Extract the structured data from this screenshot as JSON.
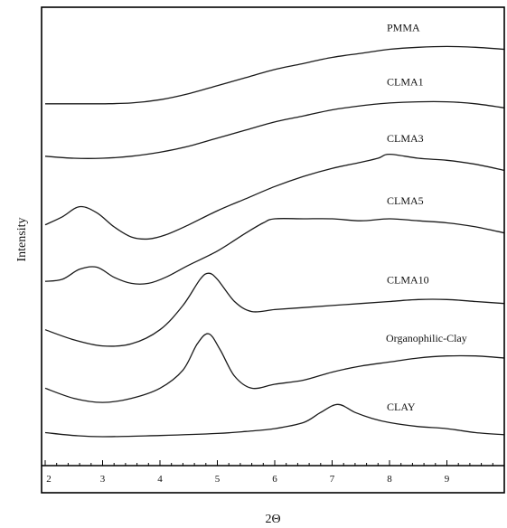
{
  "chart_data": {
    "type": "line",
    "xlabel": "2Θ",
    "ylabel": "Intensity",
    "xlim": [
      2,
      10
    ],
    "xticks": [
      "2",
      "3",
      "4",
      "5",
      "6",
      "7",
      "8",
      "9"
    ],
    "grid": false,
    "legend": "inline labels at right",
    "series": [
      {
        "name": "PMMA",
        "x": [
          2,
          2.5,
          3,
          3.5,
          4,
          4.5,
          5,
          5.5,
          6,
          6.5,
          7,
          7.5,
          8,
          8.5,
          9,
          9.5,
          10
        ],
        "y": [
          9.1,
          9.1,
          9.1,
          9.12,
          9.2,
          9.35,
          9.55,
          9.75,
          9.95,
          10.1,
          10.25,
          10.35,
          10.45,
          10.5,
          10.52,
          10.5,
          10.45
        ]
      },
      {
        "name": "CLMA1",
        "x": [
          2,
          2.5,
          3,
          3.5,
          4,
          4.5,
          5,
          5.5,
          6,
          6.5,
          7,
          7.5,
          8,
          8.5,
          9,
          9.5,
          10
        ],
        "y": [
          7.8,
          7.75,
          7.75,
          7.8,
          7.9,
          8.05,
          8.25,
          8.45,
          8.65,
          8.8,
          8.95,
          9.05,
          9.12,
          9.15,
          9.15,
          9.1,
          9.0
        ]
      },
      {
        "name": "CLMA3",
        "x": [
          2,
          2.3,
          2.6,
          2.9,
          3.2,
          3.5,
          3.8,
          4.1,
          4.5,
          5,
          5.5,
          6,
          6.5,
          7,
          7.5,
          7.8,
          8,
          8.5,
          9,
          9.5,
          10
        ],
        "y": [
          6.1,
          6.3,
          6.55,
          6.4,
          6.05,
          5.8,
          5.75,
          5.85,
          6.1,
          6.45,
          6.75,
          7.05,
          7.3,
          7.5,
          7.65,
          7.75,
          7.85,
          7.75,
          7.7,
          7.6,
          7.45
        ]
      },
      {
        "name": "CLMA5",
        "x": [
          2,
          2.3,
          2.6,
          2.9,
          3.2,
          3.5,
          3.8,
          4.1,
          4.5,
          5,
          5.5,
          5.8,
          6,
          6.5,
          7,
          7.5,
          8,
          8.5,
          9,
          9.5,
          10
        ],
        "y": [
          4.7,
          4.75,
          5.0,
          5.05,
          4.8,
          4.65,
          4.65,
          4.8,
          5.1,
          5.45,
          5.9,
          6.15,
          6.25,
          6.25,
          6.25,
          6.2,
          6.25,
          6.2,
          6.15,
          6.05,
          5.9
        ]
      },
      {
        "name": "CLMA10",
        "x": [
          2,
          2.5,
          3,
          3.5,
          4,
          4.4,
          4.7,
          4.85,
          5.0,
          5.3,
          5.6,
          6,
          6.5,
          7,
          7.5,
          8,
          8.5,
          9,
          9.5,
          10
        ],
        "y": [
          3.5,
          3.25,
          3.1,
          3.15,
          3.5,
          4.1,
          4.75,
          4.9,
          4.75,
          4.2,
          3.95,
          4.0,
          4.05,
          4.1,
          4.15,
          4.2,
          4.25,
          4.25,
          4.2,
          4.15
        ]
      },
      {
        "name": "Organophilic-Clay",
        "x": [
          2,
          2.5,
          3,
          3.5,
          4,
          4.4,
          4.65,
          4.85,
          5.05,
          5.3,
          5.6,
          6,
          6.5,
          7,
          7.5,
          8,
          8.5,
          9,
          9.5,
          10
        ],
        "y": [
          2.05,
          1.8,
          1.7,
          1.8,
          2.05,
          2.5,
          3.15,
          3.4,
          3.0,
          2.35,
          2.05,
          2.15,
          2.25,
          2.45,
          2.6,
          2.7,
          2.8,
          2.85,
          2.85,
          2.8
        ]
      },
      {
        "name": "CLAY",
        "x": [
          2,
          2.5,
          3,
          4,
          5,
          5.5,
          6,
          6.5,
          6.8,
          7.1,
          7.4,
          7.7,
          8,
          8.5,
          9,
          9.5,
          10
        ],
        "y": [
          0.95,
          0.88,
          0.85,
          0.88,
          0.93,
          0.98,
          1.05,
          1.2,
          1.45,
          1.65,
          1.45,
          1.3,
          1.2,
          1.1,
          1.05,
          0.95,
          0.9
        ]
      }
    ]
  }
}
